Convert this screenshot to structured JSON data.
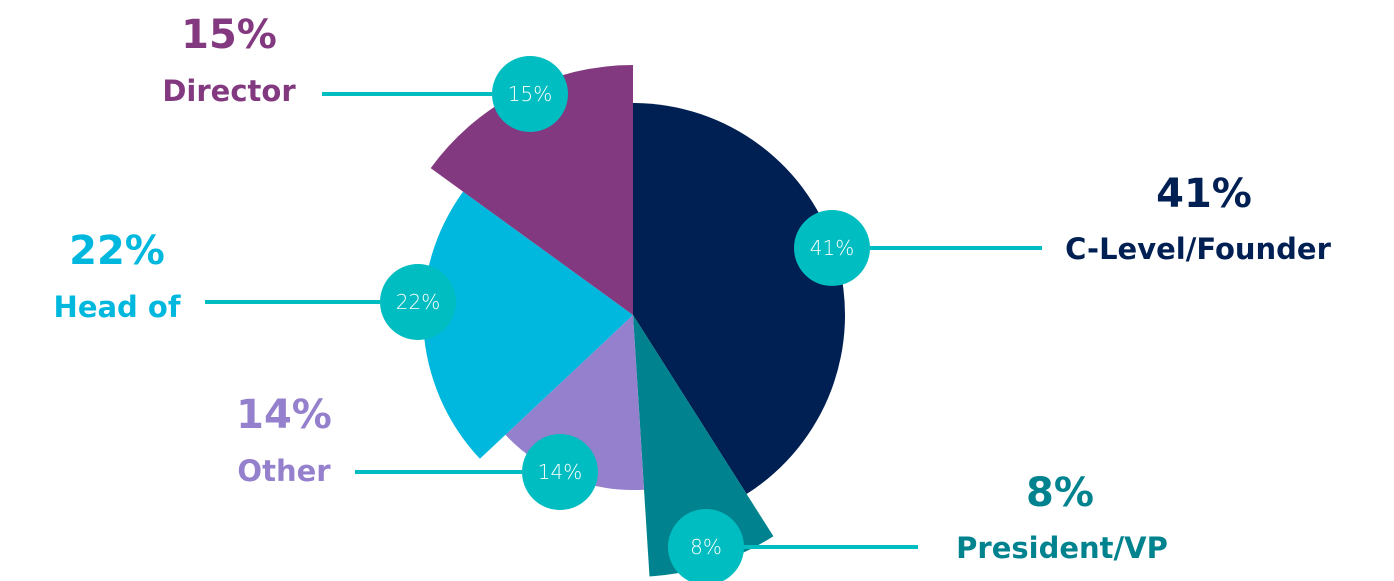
{
  "chart_data": {
    "type": "pie",
    "series": [
      {
        "name": "C-Level/Founder",
        "value": 41,
        "percent_label": "41%",
        "bubble_label": "41%",
        "color": "#001f52"
      },
      {
        "name": "President/VP",
        "value": 8,
        "percent_label": "8%",
        "bubble_label": "8%",
        "color": "#00838f"
      },
      {
        "name": "Other",
        "value": 14,
        "percent_label": "14%",
        "bubble_label": "14%",
        "color": "#9480cc"
      },
      {
        "name": "Head of",
        "value": 22,
        "percent_label": "22%",
        "bubble_label": "22%",
        "color": "#00b8de"
      },
      {
        "name": "Director",
        "value": 15,
        "percent_label": "15%",
        "bubble_label": "15%",
        "color": "#82397f"
      }
    ],
    "bubble_color": "#00bdc1",
    "leader_color": "#00bdc1"
  }
}
